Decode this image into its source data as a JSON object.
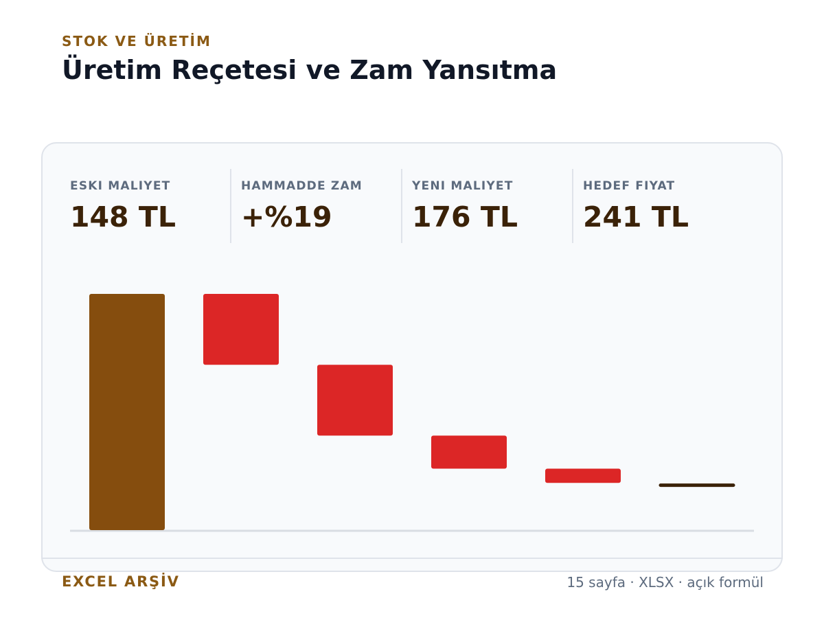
{
  "header": {
    "eyebrow": "STOK VE ÜRETİM",
    "title": "Üretim Reçetesi ve Zam Yansıtma"
  },
  "kpis": [
    {
      "label": "ESKI MALIYET",
      "value": "148 TL"
    },
    {
      "label": "HAMMADDE ZAM",
      "value": "+%19"
    },
    {
      "label": "YENI MALIYET",
      "value": "176 TL"
    },
    {
      "label": "HEDEF FIYAT",
      "value": "241 TL"
    }
  ],
  "colors": {
    "base": "#854d0e",
    "decrease": "#dc2626",
    "total": "#3b2208",
    "axis": "#d9dde3"
  },
  "chart_data": {
    "type": "bar",
    "subtype": "waterfall",
    "ylim": [
      0,
      100
    ],
    "steps": [
      {
        "kind": "base",
        "value": 100
      },
      {
        "kind": "decrease",
        "value": -30
      },
      {
        "kind": "decrease",
        "value": -30
      },
      {
        "kind": "decrease",
        "value": -14
      },
      {
        "kind": "decrease",
        "value": -6
      },
      {
        "kind": "total",
        "value": 19
      }
    ]
  },
  "footer": {
    "left": "EXCEL ARŞİV",
    "right": "15 sayfa · XLSX · açık formül"
  }
}
